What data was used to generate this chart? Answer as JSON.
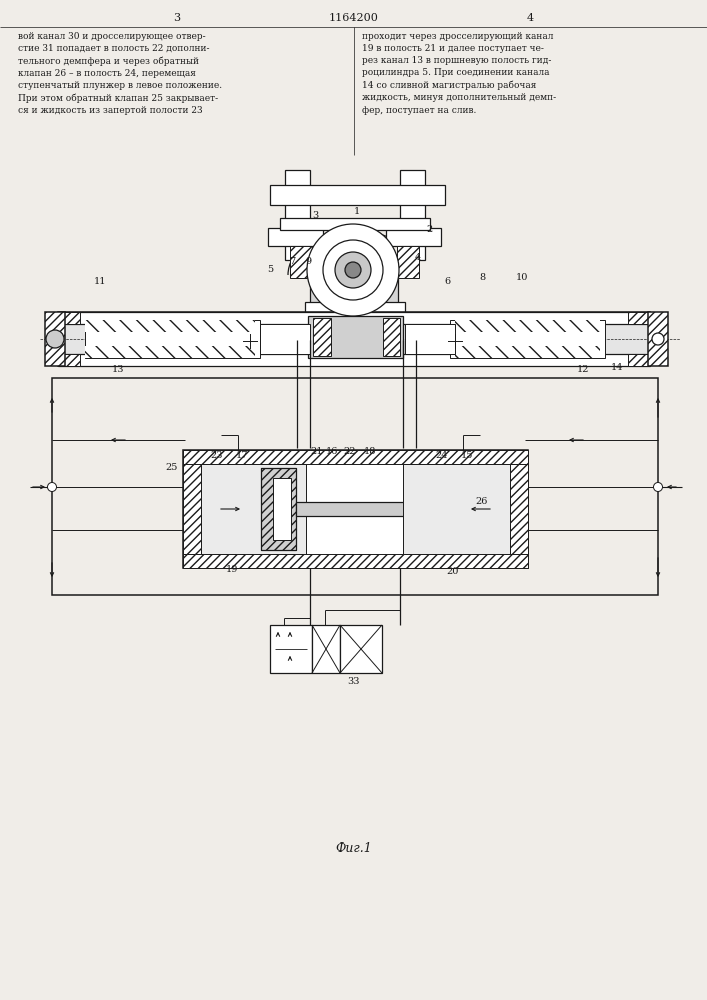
{
  "bg_color": "#f0ede8",
  "lc": "#1a1a1a",
  "header_num_left": "3",
  "header_num_center": "1164200",
  "header_num_right": "4",
  "text_left": "вой канал 30 и дросселирующее отвер-\nстие 31 попадает в полость 22 дополни-\nтельного демпфера и через обратный\nклапан 26 – в полость 24, перемещая\nступенчатый плунжер в левое положение.\nПри этом обратный клапан 25 закрывает-\nся и жидкость из запертой полости 23",
  "text_right": "проходит через дросселирующий канал\n19 в полость 21 и далее поступает че-\nрез канал 13 в поршневую полость гид-\nроцилиндра 5. При соединении канала\n14 со сливной магистралью рабочая\nжидкость, минуя дополнительный демп-\nфер, поступает на слив.",
  "caption": "Фиг.1",
  "labels": [
    [
      "1",
      357,
      212
    ],
    [
      "2",
      430,
      230
    ],
    [
      "3",
      315,
      215
    ],
    [
      "4",
      418,
      258
    ],
    [
      "5",
      270,
      270
    ],
    [
      "6",
      447,
      282
    ],
    [
      "7",
      292,
      262
    ],
    [
      "8",
      482,
      278
    ],
    [
      "9",
      308,
      262
    ],
    [
      "10",
      522,
      278
    ],
    [
      "11",
      100,
      282
    ],
    [
      "12",
      583,
      370
    ],
    [
      "13",
      118,
      370
    ],
    [
      "14",
      617,
      368
    ],
    [
      "15",
      467,
      455
    ],
    [
      "16",
      332,
      452
    ],
    [
      "17",
      242,
      455
    ],
    [
      "18",
      370,
      452
    ],
    [
      "19",
      232,
      570
    ],
    [
      "20",
      453,
      572
    ],
    [
      "21",
      317,
      452
    ],
    [
      "22",
      350,
      452
    ],
    [
      "23",
      217,
      455
    ],
    [
      "24",
      442,
      455
    ],
    [
      "25",
      172,
      467
    ],
    [
      "26",
      482,
      502
    ],
    [
      "33",
      354,
      682
    ]
  ]
}
